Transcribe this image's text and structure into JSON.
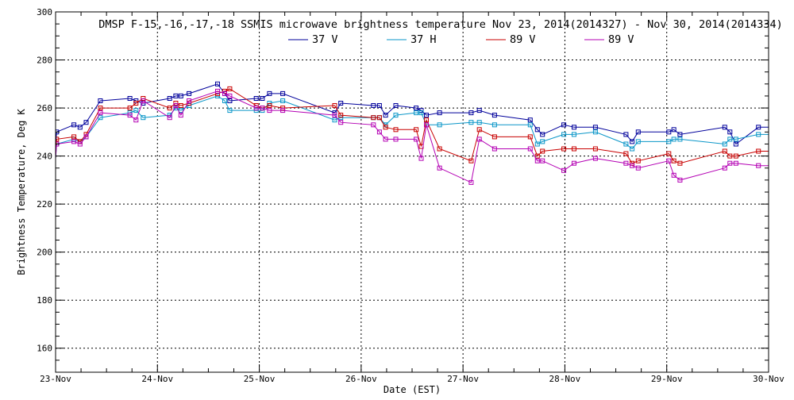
{
  "chart_data": {
    "type": "line",
    "title": "DMSP F-15,-16,-17,-18 SSMIS microwave brightness temperature Nov 23, 2014(2014327) - Nov 30, 2014(2014334)",
    "xlabel": "Date (EST)",
    "ylabel": "Brightness Temperature, Deg K",
    "xlim": [
      0,
      7
    ],
    "ylim": [
      150,
      300
    ],
    "x_ticks": [
      {
        "value": 0,
        "label": "23-Nov"
      },
      {
        "value": 1,
        "label": "24-Nov"
      },
      {
        "value": 2,
        "label": "25-Nov"
      },
      {
        "value": 3,
        "label": "26-Nov"
      },
      {
        "value": 4,
        "label": "27-Nov"
      },
      {
        "value": 5,
        "label": "28-Nov"
      },
      {
        "value": 6,
        "label": "29-Nov"
      },
      {
        "value": 7,
        "label": "30-Nov"
      }
    ],
    "y_ticks": [
      160,
      180,
      200,
      220,
      240,
      260,
      280,
      300
    ],
    "grid": true,
    "legend_position": "top",
    "x": [
      0.01,
      0.18,
      0.24,
      0.3,
      0.44,
      0.73,
      0.79,
      0.86,
      1.12,
      1.18,
      1.23,
      1.31,
      1.59,
      1.66,
      1.71,
      1.97,
      2.03,
      2.1,
      2.23,
      2.74,
      2.8,
      3.12,
      3.18,
      3.24,
      3.34,
      3.54,
      3.59,
      3.64,
      3.77,
      4.08,
      4.16,
      4.31,
      4.66,
      4.73,
      4.78,
      4.99,
      5.09,
      5.3,
      5.6,
      5.66,
      5.72,
      6.02,
      6.07,
      6.13,
      6.57,
      6.62,
      6.68,
      6.9
    ],
    "series": [
      {
        "name": "37 V",
        "color": "#00009b",
        "values": [
          250,
          253,
          252,
          254,
          263,
          264,
          263,
          262,
          264,
          265,
          265,
          266,
          270,
          266,
          263,
          264,
          264,
          266,
          266,
          258,
          262,
          261,
          261,
          257,
          261,
          260,
          259,
          257,
          258,
          258,
          259,
          257,
          255,
          251,
          249,
          253,
          252,
          252,
          249,
          246,
          250,
          250,
          251,
          249,
          252,
          250,
          245,
          252
        ]
      },
      {
        "name": "37 H",
        "color": "#0a96c8",
        "values": [
          245,
          247,
          246,
          248,
          256,
          258,
          259,
          256,
          257,
          260,
          259,
          261,
          265,
          263,
          259,
          259,
          259,
          262,
          263,
          255,
          256,
          256,
          256,
          253,
          257,
          258,
          258,
          253,
          253,
          254,
          254,
          253,
          253,
          245,
          246,
          249,
          249,
          250,
          245,
          243,
          246,
          246,
          247,
          247,
          245,
          247,
          247,
          249
        ]
      },
      {
        "name": "89 V",
        "color": "#c80000",
        "values": [
          247,
          248,
          246,
          249,
          260,
          260,
          262,
          264,
          260,
          262,
          261,
          262,
          266,
          267,
          268,
          261,
          260,
          261,
          260,
          261,
          257,
          256,
          256,
          252,
          251,
          251,
          244,
          255,
          243,
          238,
          251,
          248,
          248,
          240,
          242,
          243,
          243,
          243,
          241,
          237,
          238,
          241,
          238,
          237,
          242,
          240,
          240,
          242
        ]
      },
      {
        "name": "89 V",
        "color": "#b400b4",
        "values": [
          245,
          246,
          245,
          248,
          258,
          257,
          255,
          263,
          256,
          261,
          257,
          263,
          267,
          266,
          265,
          260,
          260,
          259,
          259,
          257,
          254,
          253,
          250,
          247,
          247,
          247,
          239,
          253,
          235,
          229,
          247,
          243,
          243,
          238,
          238,
          234,
          237,
          239,
          237,
          236,
          235,
          238,
          232,
          230,
          235,
          237,
          237,
          236
        ]
      }
    ]
  }
}
